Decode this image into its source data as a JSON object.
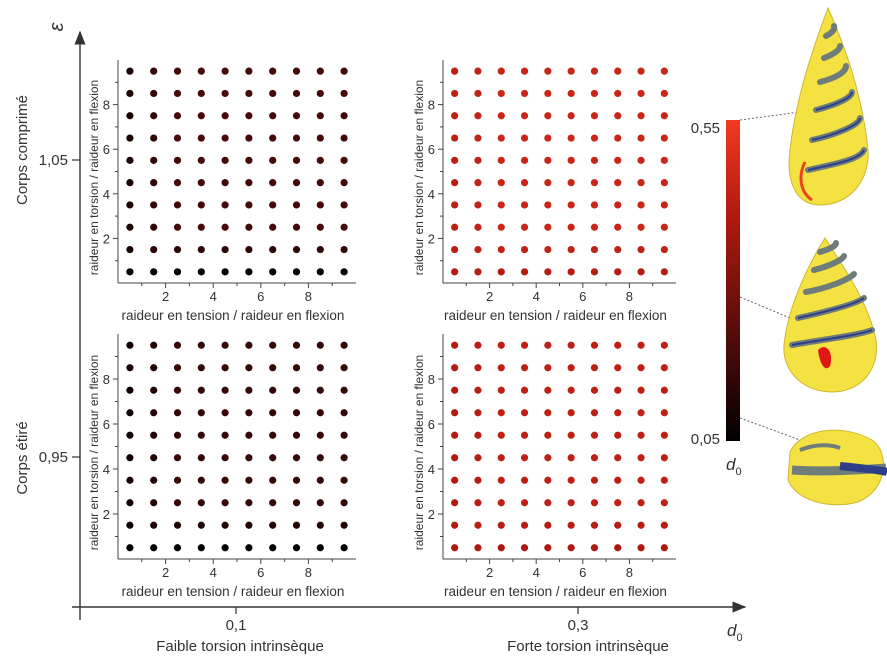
{
  "chart_data": {
    "type": "scatter",
    "outer": {
      "x_label": "Faible torsion intrinsèque",
      "x_label_2": "Forte torsion intrinsèque",
      "x_ticks": [
        "0,1",
        "0,3"
      ],
      "x_axis_symbol": "d",
      "x_axis_symbol_sub": "0",
      "y_axis_symbol": "ε",
      "y_ticks": [
        "1,05",
        "0,95"
      ],
      "y_label_top": "Corps comprimé",
      "y_label_bottom": "Corps étiré"
    },
    "panel_xlabel": "raideur en tension / raideur en flexion",
    "panel_ylabel": "raideur en torsion / raideur en flexion",
    "panel_x_ticks": [
      "2",
      "4",
      "6",
      "8"
    ],
    "panel_y_ticks": [
      "2",
      "4",
      "6",
      "8"
    ],
    "panel_xlim": [
      0,
      10
    ],
    "panel_ylim": [
      0,
      10
    ],
    "grid_x": [
      0.5,
      1.5,
      2.5,
      3.5,
      4.5,
      5.5,
      6.5,
      7.5,
      8.5,
      9.5
    ],
    "grid_y": [
      0.5,
      1.5,
      2.5,
      3.5,
      4.5,
      5.5,
      6.5,
      7.5,
      8.5,
      9.5
    ],
    "panels": [
      {
        "name": "d0=0.1, ε=1.05",
        "d0": 0.1,
        "epsilon": 1.05,
        "typical_d0": 0.18,
        "min_d0": 0.06
      },
      {
        "name": "d0=0.3, ε=1.05",
        "d0": 0.3,
        "epsilon": 1.05,
        "typical_d0": 0.45,
        "min_d0": 0.4
      },
      {
        "name": "d0=0.1, ε=0.95",
        "d0": 0.1,
        "epsilon": 0.95,
        "typical_d0": 0.15,
        "min_d0": 0.05
      },
      {
        "name": "d0=0.3, ε=0.95",
        "d0": 0.3,
        "epsilon": 0.95,
        "typical_d0": 0.42,
        "min_d0": 0.38
      }
    ],
    "colorbar": {
      "label": "d",
      "label_sub": "0",
      "min_label": "0,05",
      "max_label": "0,55",
      "min": 0.05,
      "max": 0.55,
      "colors": [
        "#000000",
        "#5a0c0c",
        "#b0190f",
        "#f23a22"
      ]
    },
    "shell_colors": {
      "shell": "#f2df2e",
      "tube": "#6e7c7a",
      "stripe": "#2d3f88",
      "cut": "#e01515"
    }
  }
}
